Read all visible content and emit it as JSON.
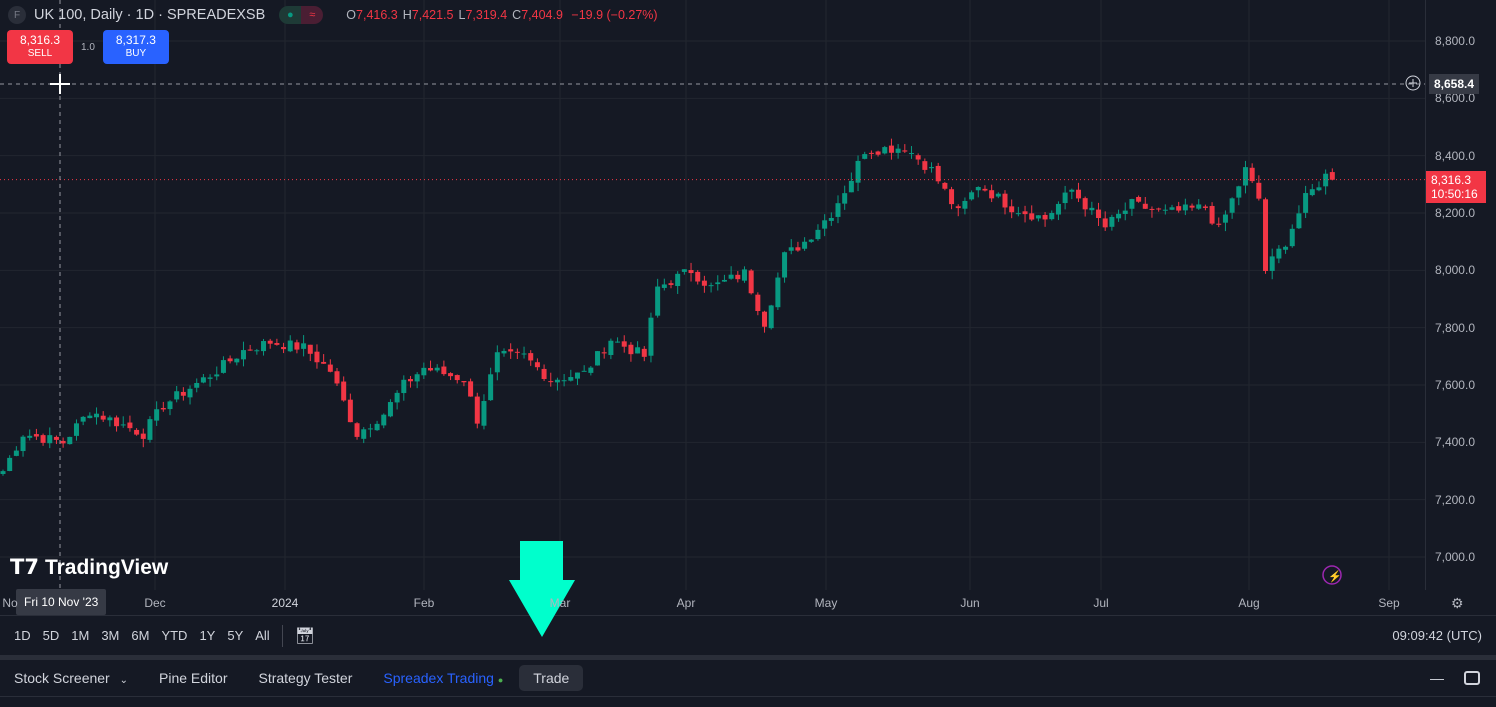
{
  "header": {
    "symbol_icon": "F",
    "title": "UK 100, Daily · 1D · SPREADEXSB",
    "open_label": "O",
    "open": "7,416.3",
    "high_label": "H",
    "high": "7,421.5",
    "low_label": "L",
    "low": "7,319.4",
    "close_label": "C",
    "close": "7,404.9",
    "change": "−19.9 (−0.27%)"
  },
  "trade": {
    "sell_price": "8,316.3",
    "sell_label": "SELL",
    "quantity": "1.0",
    "buy_price": "8,317.3",
    "buy_label": "BUY"
  },
  "price_axis": {
    "ticks": [
      "8,800.0",
      "8,600.0",
      "8,400.0",
      "8,200.0",
      "8,000.0",
      "7,800.0",
      "7,600.0",
      "7,400.0",
      "7,200.0",
      "7,000.0"
    ],
    "crosshair_price": "8,658.4",
    "last_price": "8,316.3",
    "countdown": "10:50:16"
  },
  "time_axis": {
    "labels": [
      "No",
      "Dec",
      "2024",
      "Feb",
      "Mar",
      "Apr",
      "May",
      "Jun",
      "Jul",
      "Aug",
      "Sep"
    ],
    "crosshair_date": "Fri 10 Nov '23"
  },
  "logo": "TradingView",
  "range_bar": {
    "ranges": [
      "1D",
      "5D",
      "1M",
      "3M",
      "6M",
      "YTD",
      "1Y",
      "5Y",
      "All"
    ],
    "clock": "09:09:42 (UTC)"
  },
  "bottom_tabs": [
    "Stock Screener",
    "Pine Editor",
    "Strategy Tester",
    "Spreadex Trading",
    "Trade"
  ],
  "colors": {
    "up": "#089981",
    "down": "#f23645",
    "buy": "#2962ff",
    "arrow": "#00ffcc"
  },
  "chart_data": {
    "type": "candlestick",
    "ylim": [
      7000,
      8800
    ],
    "anchor_closes": [
      [
        0,
        7300
      ],
      [
        3,
        7430
      ],
      [
        9,
        7400
      ],
      [
        13,
        7510
      ],
      [
        21,
        7430
      ],
      [
        24,
        7530
      ],
      [
        32,
        7650
      ],
      [
        36,
        7720
      ],
      [
        40,
        7750
      ],
      [
        45,
        7730
      ],
      [
        49,
        7650
      ],
      [
        53,
        7430
      ],
      [
        57,
        7500
      ],
      [
        60,
        7600
      ],
      [
        63,
        7660
      ],
      [
        66,
        7640
      ],
      [
        69,
        7620
      ],
      [
        71,
        7480
      ],
      [
        74,
        7700
      ],
      [
        78,
        7700
      ],
      [
        82,
        7620
      ],
      [
        87,
        7640
      ],
      [
        91,
        7760
      ],
      [
        96,
        7700
      ],
      [
        98,
        7940
      ],
      [
        103,
        8000
      ],
      [
        106,
        7940
      ],
      [
        111,
        7990
      ],
      [
        114,
        7820
      ],
      [
        117,
        8050
      ],
      [
        120,
        8100
      ],
      [
        124,
        8200
      ],
      [
        127,
        8320
      ],
      [
        129,
        8420
      ],
      [
        135,
        8430
      ],
      [
        139,
        8350
      ],
      [
        143,
        8200
      ],
      [
        146,
        8300
      ],
      [
        151,
        8220
      ],
      [
        156,
        8180
      ],
      [
        160,
        8280
      ],
      [
        165,
        8150
      ],
      [
        169,
        8230
      ],
      [
        174,
        8200
      ],
      [
        180,
        8220
      ],
      [
        182,
        8140
      ],
      [
        186,
        8350
      ],
      [
        188,
        8250
      ],
      [
        189,
        8000
      ],
      [
        192,
        8100
      ],
      [
        195,
        8250
      ],
      [
        198,
        8330
      ],
      [
        199,
        8316
      ]
    ]
  }
}
